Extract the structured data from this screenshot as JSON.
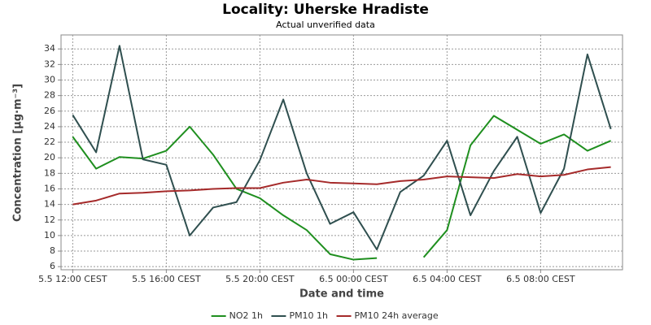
{
  "chart_data": {
    "type": "line",
    "title": "Locality: Uherske Hradiste",
    "subtitle": "Actual unverified data",
    "x_label": "Date and time",
    "y_label": "Concentration [µg·m⁻³]",
    "categories": [
      "5.5 12:00 CEST",
      null,
      null,
      null,
      "5.5 16:00 CEST",
      null,
      null,
      null,
      "5.5 20:00 CEST",
      null,
      null,
      null,
      "6.5 00:00 CEST",
      null,
      null,
      null,
      "6.5 04:00 CEST",
      null,
      null,
      null,
      "6.5 08:00 CEST",
      null,
      null,
      null
    ],
    "series": [
      {
        "name": "NO2 1h",
        "color": "#1f8f1f",
        "values": [
          22.7,
          18.6,
          20.1,
          19.9,
          20.9,
          24.0,
          20.4,
          16.0,
          14.8,
          12.6,
          10.7,
          7.6,
          6.9,
          7.1,
          null,
          7.2,
          10.7,
          21.6,
          25.4,
          23.6,
          21.8,
          23.0,
          20.9,
          22.2
        ]
      },
      {
        "name": "PM10 1h",
        "color": "#2f4f4f",
        "values": [
          25.5,
          20.7,
          34.4,
          19.8,
          19.1,
          10.0,
          13.6,
          14.3,
          19.7,
          27.5,
          18.0,
          11.5,
          13.0,
          8.2,
          15.6,
          17.7,
          22.2,
          12.6,
          18.3,
          22.7,
          12.9,
          18.6,
          33.3,
          23.7
        ]
      },
      {
        "name": "PM10 24h average",
        "color": "#a52a2a",
        "values": [
          14.0,
          14.5,
          15.4,
          15.5,
          15.7,
          15.8,
          16.0,
          16.1,
          16.1,
          16.8,
          17.2,
          16.8,
          16.7,
          16.6,
          17.0,
          17.2,
          17.6,
          17.5,
          17.4,
          17.9,
          17.6,
          17.8,
          18.5,
          18.8
        ]
      }
    ],
    "ylim": [
      5.6,
      35.8
    ],
    "yticks": [
      6,
      8,
      10,
      12,
      14,
      16,
      18,
      20,
      22,
      24,
      26,
      28,
      30,
      32,
      34
    ],
    "grid": true,
    "legend": "bottom"
  }
}
